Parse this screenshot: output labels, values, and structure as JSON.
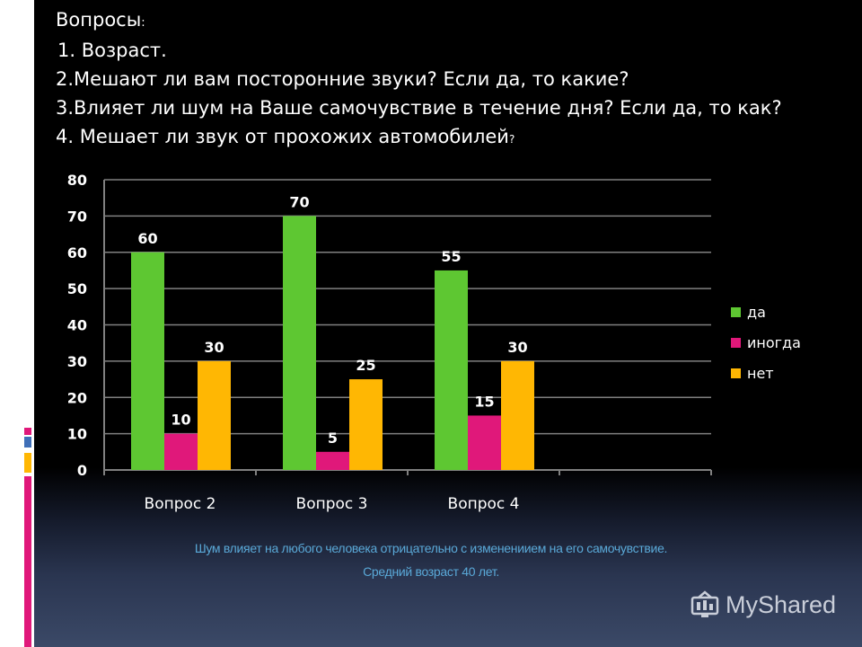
{
  "slide": {
    "title": "Вопросы",
    "title_colon": ":",
    "questions": [
      {
        "text": " 1. Возраст.",
        "small": ""
      },
      {
        "text": "2.Мешают ли вам посторонние звуки? Если да, то какие?",
        "small": ""
      },
      {
        "text": "3.Влияет ли шум на Ваше самочувствие в течение дня? Если да, то как?",
        "small": ""
      },
      {
        "text": "4. Мешает ли звук от прохожих автомобилей",
        "small": "?"
      }
    ],
    "caption_line1": "Шум влияет на любого человека отрицательно с  изменениием на его самочувствие.",
    "caption_line2": "Средний возраст 40 лет.",
    "watermark_text": "MyShared",
    "watermark_icon": "myshared-logo-icon"
  },
  "colors": {
    "da": "#5ec732",
    "inogda": "#e0187a",
    "net": "#ffb703",
    "axis": "#ffffff",
    "grid": "#808080",
    "text": "#ffffff",
    "caption": "#5aa9d8"
  },
  "chart_data": {
    "type": "bar",
    "categories": [
      "Вопрос 2",
      "Вопрос 3",
      "Вопрос 4"
    ],
    "series": [
      {
        "name": "да",
        "values": [
          60,
          70,
          55
        ],
        "labels": [
          "60",
          "70",
          "55"
        ]
      },
      {
        "name": "иногда",
        "values": [
          10,
          5,
          15
        ],
        "labels": [
          "10",
          "5",
          "15"
        ]
      },
      {
        "name": "нет",
        "values": [
          30,
          25,
          30
        ],
        "labels": [
          "30",
          "25",
          "30"
        ]
      }
    ],
    "yticks": [
      "0",
      "10",
      "20",
      "30",
      "40",
      "50",
      "60",
      "70",
      "80"
    ],
    "ylim": [
      0,
      80
    ],
    "num_slots": 4,
    "grid": true,
    "legend_position": "right",
    "title": "",
    "xlabel": "",
    "ylabel": ""
  }
}
